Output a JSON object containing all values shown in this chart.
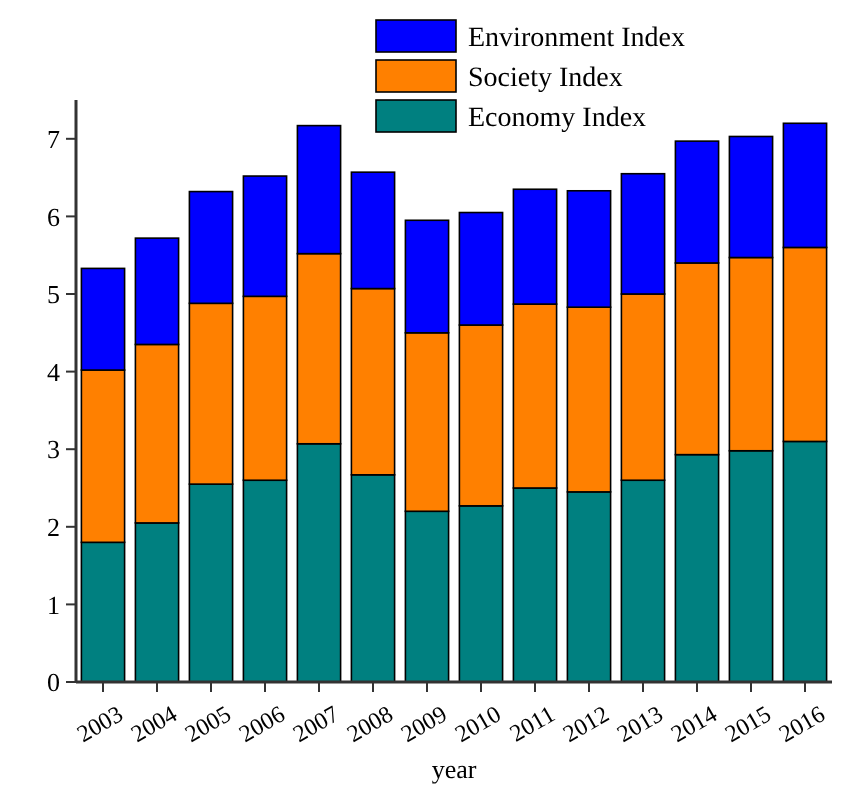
{
  "chart_data": {
    "type": "bar",
    "stacked": true,
    "xlabel": "year",
    "categories": [
      "2003",
      "2004",
      "2005",
      "2006",
      "2007",
      "2008",
      "2009",
      "2010",
      "2011",
      "2012",
      "2013",
      "2014",
      "2015",
      "2016"
    ],
    "series": [
      {
        "name": "Economy Index",
        "color": "#008080",
        "values": [
          1.8,
          2.05,
          2.55,
          2.6,
          3.07,
          2.67,
          2.2,
          2.27,
          2.5,
          2.45,
          2.6,
          2.93,
          2.98,
          3.1
        ]
      },
      {
        "name": "Society Index",
        "color": "#ff8000",
        "values": [
          2.22,
          2.3,
          2.33,
          2.37,
          2.45,
          2.4,
          2.3,
          2.33,
          2.37,
          2.38,
          2.4,
          2.47,
          2.49,
          2.5
        ]
      },
      {
        "name": "Environment Index",
        "color": "#0000ff",
        "values": [
          1.31,
          1.37,
          1.44,
          1.55,
          1.65,
          1.5,
          1.45,
          1.45,
          1.48,
          1.5,
          1.55,
          1.57,
          1.56,
          1.6
        ]
      }
    ],
    "ylim": [
      0,
      7.5
    ],
    "yticks": [
      0,
      1,
      2,
      3,
      4,
      5,
      6,
      7
    ],
    "legend": "top",
    "grid": false
  }
}
